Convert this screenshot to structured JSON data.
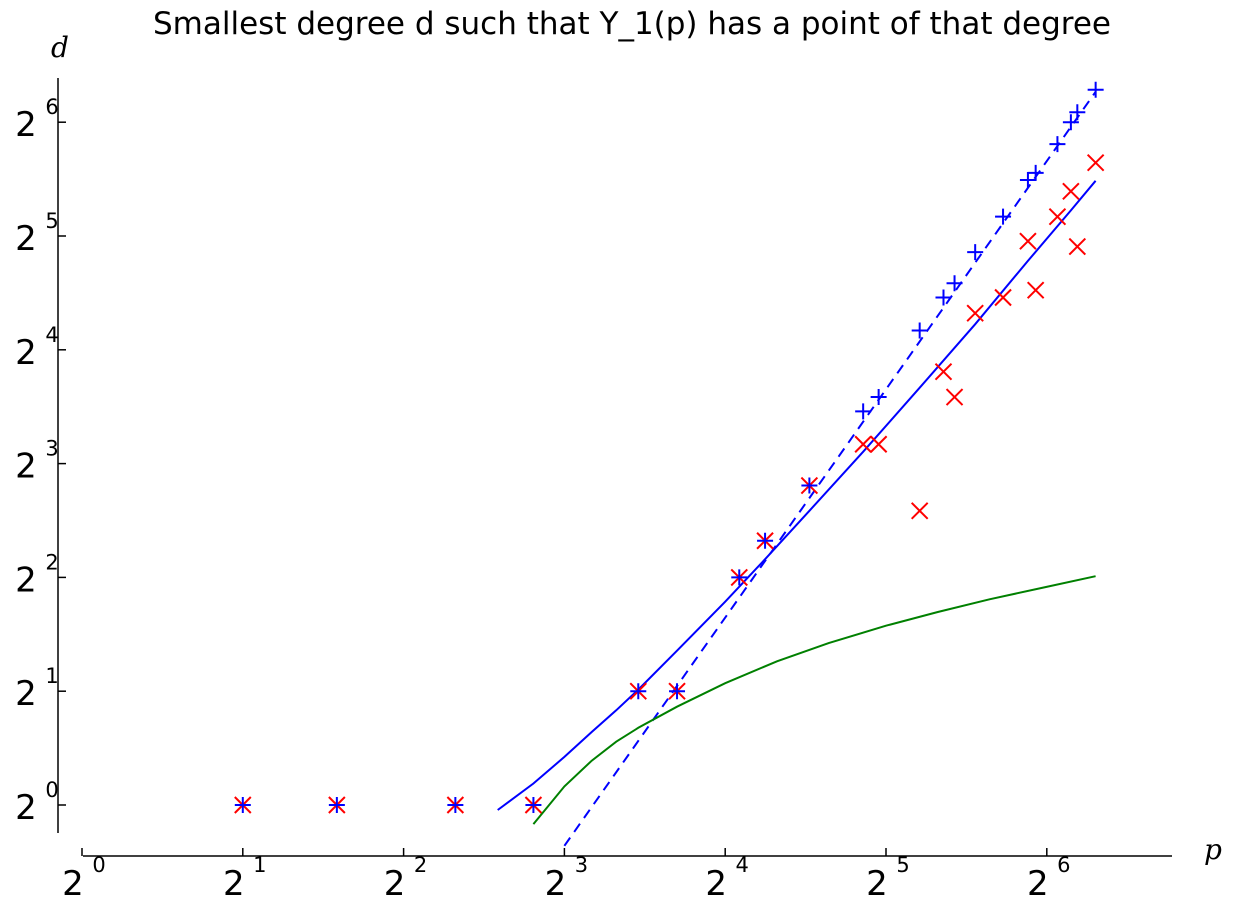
{
  "chart_data": {
    "type": "scatter",
    "title": "Smallest degree d such that Y_1(p) has a point of that degree",
    "xlabel": "p",
    "ylabel": "d",
    "x_scale": "log2",
    "y_scale": "log2",
    "xlim": [
      1,
      116
    ],
    "ylim": [
      0.84,
      84
    ],
    "x_ticks": [
      {
        "base": "2",
        "exp": "0",
        "value": 1
      },
      {
        "base": "2",
        "exp": "1",
        "value": 2
      },
      {
        "base": "2",
        "exp": "2",
        "value": 4
      },
      {
        "base": "2",
        "exp": "3",
        "value": 8
      },
      {
        "base": "2",
        "exp": "4",
        "value": 16
      },
      {
        "base": "2",
        "exp": "5",
        "value": 32
      },
      {
        "base": "2",
        "exp": "6",
        "value": 64
      }
    ],
    "y_ticks": [
      {
        "base": "2",
        "exp": "0",
        "value": 1
      },
      {
        "base": "2",
        "exp": "1",
        "value": 2
      },
      {
        "base": "2",
        "exp": "2",
        "value": 4
      },
      {
        "base": "2",
        "exp": "3",
        "value": 8
      },
      {
        "base": "2",
        "exp": "4",
        "value": 16
      },
      {
        "base": "2",
        "exp": "5",
        "value": 32
      },
      {
        "base": "2",
        "exp": "6",
        "value": 64
      }
    ],
    "grid": false,
    "colors": {
      "red": "#ff0000",
      "blue": "#0000ff",
      "green": "#008000"
    },
    "series": [
      {
        "marker": "x",
        "color": "#ff0000",
        "points": [
          [
            2,
            1
          ],
          [
            3,
            1
          ],
          [
            5,
            1
          ],
          [
            7,
            1
          ],
          [
            11,
            2
          ],
          [
            13,
            2
          ],
          [
            17,
            4
          ],
          [
            19,
            5
          ],
          [
            23,
            7
          ],
          [
            29,
            9
          ],
          [
            31,
            9
          ],
          [
            37,
            6
          ],
          [
            41,
            14
          ],
          [
            43,
            12
          ],
          [
            47,
            20
          ],
          [
            53,
            22
          ],
          [
            59,
            31
          ],
          [
            61,
            23
          ],
          [
            67,
            36
          ],
          [
            71,
            42
          ],
          [
            73,
            30
          ],
          [
            79,
            50
          ]
        ]
      },
      {
        "marker": "+",
        "color": "#0000ff",
        "points": [
          [
            2,
            1
          ],
          [
            3,
            1
          ],
          [
            5,
            1
          ],
          [
            7,
            1
          ],
          [
            11,
            2
          ],
          [
            13,
            2
          ],
          [
            17,
            4
          ],
          [
            19,
            5
          ],
          [
            23,
            7
          ],
          [
            29,
            11
          ],
          [
            31,
            12
          ],
          [
            37,
            18
          ],
          [
            41,
            22
          ],
          [
            43,
            24
          ],
          [
            47,
            29
          ],
          [
            53,
            36
          ],
          [
            59,
            45
          ],
          [
            61,
            47
          ],
          [
            67,
            56
          ],
          [
            71,
            64
          ],
          [
            73,
            68
          ],
          [
            79,
            78
          ]
        ]
      },
      {
        "style": "solid-line",
        "color": "#0000ff",
        "points": [
          [
            6,
            0.97
          ],
          [
            7,
            1.14
          ],
          [
            8,
            1.34
          ],
          [
            9,
            1.56
          ],
          [
            10,
            1.78
          ],
          [
            11,
            2.02
          ],
          [
            13,
            2.56
          ],
          [
            16,
            3.45
          ],
          [
            19,
            4.47
          ],
          [
            23,
            6.0
          ],
          [
            29,
            8.6
          ],
          [
            37,
            12.7
          ],
          [
            47,
            18.7
          ],
          [
            59,
            27.5
          ],
          [
            71,
            37.4
          ],
          [
            79,
            44.8
          ]
        ]
      },
      {
        "style": "dashed-line",
        "color": "#0000ff",
        "points": [
          [
            8,
            0.78
          ],
          [
            79,
            77
          ]
        ]
      },
      {
        "style": "solid-line",
        "color": "#008000",
        "points": [
          [
            7,
            0.89
          ],
          [
            8,
            1.12
          ],
          [
            9,
            1.31
          ],
          [
            10,
            1.47
          ],
          [
            11,
            1.6
          ],
          [
            13,
            1.82
          ],
          [
            16,
            2.1
          ],
          [
            20,
            2.4
          ],
          [
            25,
            2.68
          ],
          [
            32,
            2.98
          ],
          [
            40,
            3.24
          ],
          [
            50,
            3.5
          ],
          [
            63,
            3.76
          ],
          [
            79,
            4.03
          ]
        ]
      }
    ]
  }
}
